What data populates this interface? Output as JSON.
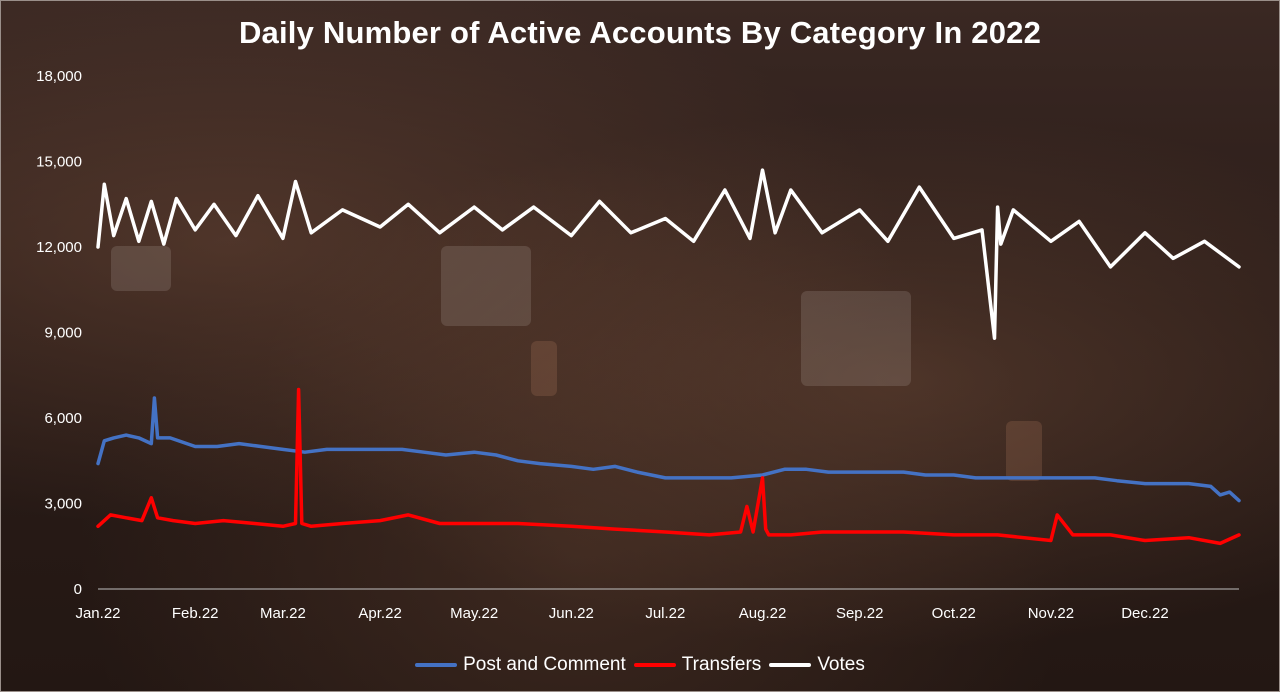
{
  "title": "Daily Number of Active Accounts By Category In 2022",
  "chart_data": {
    "type": "line",
    "title": "Daily Number of Active Accounts By Category In 2022",
    "xlabel": "",
    "ylabel": "",
    "ylim": [
      0,
      18000
    ],
    "y_ticks": [
      "0",
      "3,000",
      "6,000",
      "9,000",
      "12,000",
      "15,000",
      "18,000"
    ],
    "x_tick_labels": [
      "Jan.22",
      "Feb.22",
      "Mar.22",
      "Apr.22",
      "May.22",
      "Jun.22",
      "Jul.22",
      "Aug.22",
      "Sep.22",
      "Oct.22",
      "Nov.22",
      "Dec.22"
    ],
    "x_range": [
      "2022-01-01",
      "2022-12-31"
    ],
    "grid": false,
    "legend_position": "bottom",
    "series": [
      {
        "name": "Post and Comment",
        "color": "#4472c4",
        "x": [
          "2022-01-01",
          "2022-01-03",
          "2022-01-06",
          "2022-01-10",
          "2022-01-14",
          "2022-01-18",
          "2022-01-19",
          "2022-01-20",
          "2022-01-24",
          "2022-02-01",
          "2022-02-08",
          "2022-02-15",
          "2022-02-22",
          "2022-03-01",
          "2022-03-08",
          "2022-03-15",
          "2022-03-22",
          "2022-04-01",
          "2022-04-08",
          "2022-04-15",
          "2022-04-22",
          "2022-05-01",
          "2022-05-08",
          "2022-05-15",
          "2022-05-22",
          "2022-06-01",
          "2022-06-08",
          "2022-06-15",
          "2022-06-22",
          "2022-07-01",
          "2022-07-08",
          "2022-07-15",
          "2022-07-22",
          "2022-08-01",
          "2022-08-08",
          "2022-08-15",
          "2022-08-22",
          "2022-09-01",
          "2022-09-08",
          "2022-09-15",
          "2022-09-22",
          "2022-10-01",
          "2022-10-08",
          "2022-10-15",
          "2022-10-22",
          "2022-11-01",
          "2022-11-08",
          "2022-11-15",
          "2022-11-22",
          "2022-12-01",
          "2022-12-08",
          "2022-12-15",
          "2022-12-22",
          "2022-12-25",
          "2022-12-28",
          "2022-12-31"
        ],
        "values": [
          4400,
          5200,
          5300,
          5400,
          5300,
          5100,
          6700,
          5300,
          5300,
          5000,
          5000,
          5100,
          5000,
          4900,
          4800,
          4900,
          4900,
          4900,
          4900,
          4800,
          4700,
          4800,
          4700,
          4500,
          4400,
          4300,
          4200,
          4300,
          4100,
          3900,
          3900,
          3900,
          3900,
          4000,
          4200,
          4200,
          4100,
          4100,
          4100,
          4100,
          4000,
          4000,
          3900,
          3900,
          3900,
          3900,
          3900,
          3900,
          3800,
          3700,
          3700,
          3700,
          3600,
          3300,
          3400,
          3100
        ]
      },
      {
        "name": "Transfers",
        "color": "#ff0000",
        "x": [
          "2022-01-01",
          "2022-01-05",
          "2022-01-10",
          "2022-01-15",
          "2022-01-18",
          "2022-01-20",
          "2022-01-25",
          "2022-02-01",
          "2022-02-10",
          "2022-02-20",
          "2022-03-01",
          "2022-03-05",
          "2022-03-06",
          "2022-03-07",
          "2022-03-10",
          "2022-03-20",
          "2022-04-01",
          "2022-04-10",
          "2022-04-20",
          "2022-05-01",
          "2022-05-15",
          "2022-06-01",
          "2022-06-15",
          "2022-07-01",
          "2022-07-15",
          "2022-07-25",
          "2022-07-27",
          "2022-07-29",
          "2022-08-01",
          "2022-08-02",
          "2022-08-03",
          "2022-08-10",
          "2022-08-20",
          "2022-09-01",
          "2022-09-15",
          "2022-10-01",
          "2022-10-15",
          "2022-11-01",
          "2022-11-03",
          "2022-11-08",
          "2022-11-20",
          "2022-12-01",
          "2022-12-15",
          "2022-12-25",
          "2022-12-31"
        ],
        "values": [
          2200,
          2600,
          2500,
          2400,
          3200,
          2500,
          2400,
          2300,
          2400,
          2300,
          2200,
          2300,
          7000,
          2300,
          2200,
          2300,
          2400,
          2600,
          2300,
          2300,
          2300,
          2200,
          2100,
          2000,
          1900,
          2000,
          2900,
          2000,
          3900,
          2100,
          1900,
          1900,
          2000,
          2000,
          2000,
          1900,
          1900,
          1700,
          2600,
          1900,
          1900,
          1700,
          1800,
          1600,
          1900
        ]
      },
      {
        "name": "Votes",
        "color": "#ffffff",
        "x": [
          "2022-01-01",
          "2022-01-03",
          "2022-01-06",
          "2022-01-10",
          "2022-01-14",
          "2022-01-18",
          "2022-01-22",
          "2022-01-26",
          "2022-02-01",
          "2022-02-07",
          "2022-02-14",
          "2022-02-21",
          "2022-03-01",
          "2022-03-05",
          "2022-03-10",
          "2022-03-20",
          "2022-04-01",
          "2022-04-10",
          "2022-04-20",
          "2022-05-01",
          "2022-05-10",
          "2022-05-20",
          "2022-06-01",
          "2022-06-10",
          "2022-06-20",
          "2022-07-01",
          "2022-07-10",
          "2022-07-20",
          "2022-07-28",
          "2022-08-01",
          "2022-08-05",
          "2022-08-10",
          "2022-08-20",
          "2022-09-01",
          "2022-09-10",
          "2022-09-20",
          "2022-10-01",
          "2022-10-10",
          "2022-10-14",
          "2022-10-15",
          "2022-10-16",
          "2022-10-20",
          "2022-11-01",
          "2022-11-10",
          "2022-11-20",
          "2022-12-01",
          "2022-12-10",
          "2022-12-20",
          "2022-12-31"
        ],
        "values": [
          12000,
          14200,
          12400,
          13700,
          12200,
          13600,
          12100,
          13700,
          12600,
          13500,
          12400,
          13800,
          12300,
          14300,
          12500,
          13300,
          12700,
          13500,
          12500,
          13400,
          12600,
          13400,
          12400,
          13600,
          12500,
          13000,
          12200,
          14000,
          12300,
          14700,
          12500,
          14000,
          12500,
          13300,
          12200,
          14100,
          12300,
          12600,
          8800,
          13400,
          12100,
          13300,
          12200,
          12900,
          11300,
          12500,
          11600,
          12200,
          11300
        ]
      }
    ]
  }
}
